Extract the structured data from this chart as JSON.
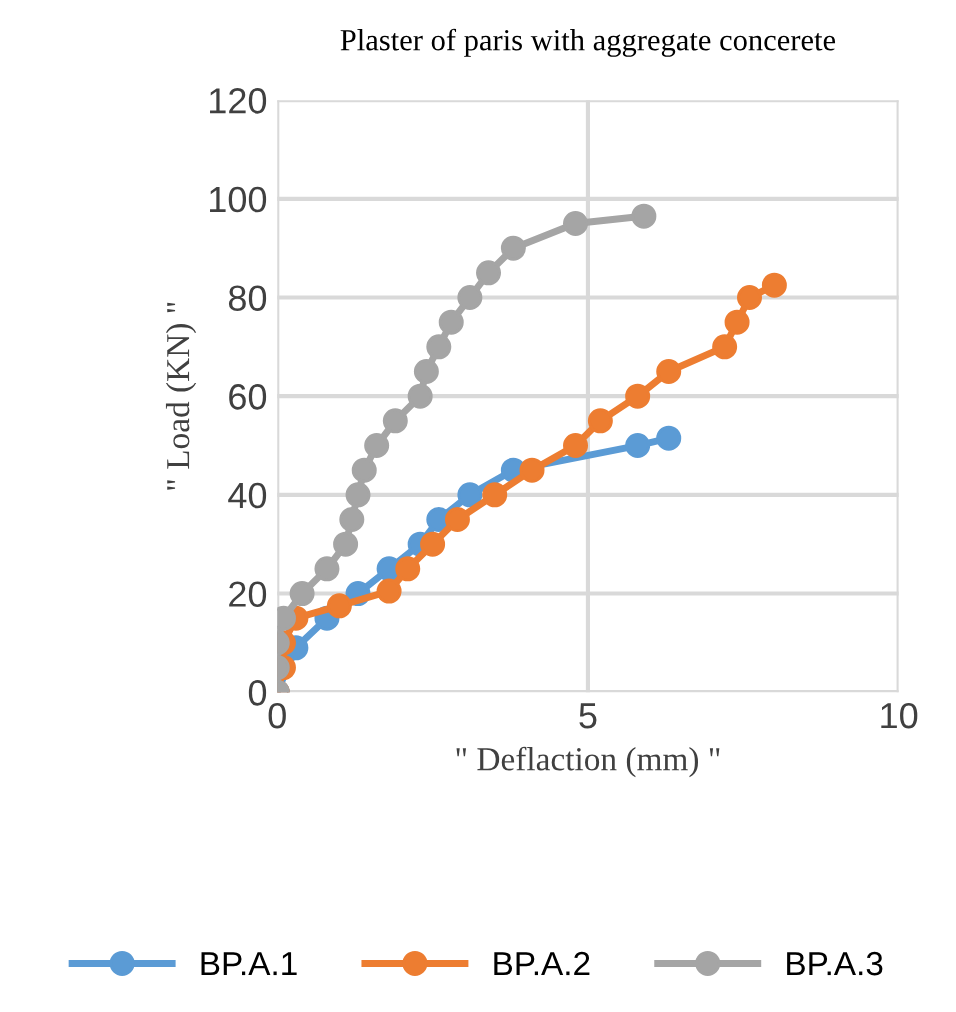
{
  "chart_data": {
    "type": "line",
    "title": "Plaster of paris with aggregate concerete",
    "xlabel": "\" Deflaction (mm) \"",
    "ylabel": "\" Load (KN) \"",
    "xlim": [
      0,
      10
    ],
    "xticks": [
      0,
      5,
      10
    ],
    "ylim": [
      0,
      120
    ],
    "yticks": [
      0,
      20,
      40,
      60,
      80,
      100,
      120
    ],
    "grid": true,
    "legend": "bottom",
    "marker": "circle",
    "line_style": "solid",
    "series": [
      {
        "name": "BP.A.1",
        "color": "#5b9bd5",
        "x": [
          0,
          0.3,
          0.8,
          1.3,
          1.8,
          2.3,
          2.6,
          3.1,
          3.8,
          5.8,
          6.3
        ],
        "values": [
          0,
          9,
          15,
          20,
          25,
          30,
          35,
          40,
          45,
          50,
          51.5
        ]
      },
      {
        "name": "BP.A.2",
        "color": "#ed7d31",
        "x": [
          0,
          0.1,
          0.1,
          0.3,
          1.0,
          1.8,
          2.1,
          2.5,
          2.9,
          3.5,
          4.1,
          4.8,
          5.2,
          5.8,
          6.3,
          7.2,
          7.4,
          7.6,
          8.0
        ],
        "values": [
          0,
          5,
          10,
          15,
          17.5,
          20.5,
          25,
          30,
          35,
          40,
          45,
          50,
          55,
          60,
          65,
          70,
          75,
          80,
          82.5
        ]
      },
      {
        "name": "BP.A.3",
        "color": "#a5a5a5",
        "x": [
          0,
          0,
          0,
          0.1,
          0.4,
          0.8,
          1.1,
          1.2,
          1.3,
          1.4,
          1.6,
          1.9,
          2.3,
          2.4,
          2.6,
          2.8,
          3.1,
          3.4,
          3.8,
          4.8,
          5.9
        ],
        "values": [
          0,
          5,
          10,
          15,
          20,
          25,
          30,
          35,
          40,
          45,
          50,
          55,
          60,
          65,
          70,
          75,
          80,
          85,
          90,
          95,
          96.5
        ]
      }
    ]
  }
}
